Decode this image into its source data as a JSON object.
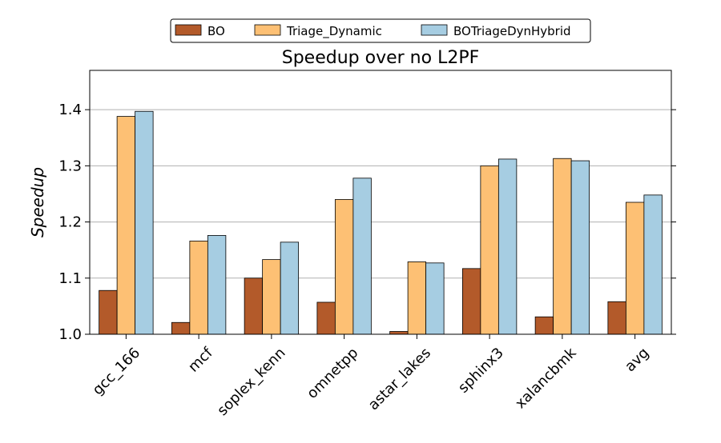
{
  "chart_data": {
    "type": "bar",
    "title": "Speedup over no L2PF",
    "xlabel": "",
    "ylabel": "Speedup",
    "ylim": [
      1.0,
      1.47
    ],
    "yticks": [
      "1.0",
      "1.1",
      "1.2",
      "1.3",
      "1.4"
    ],
    "grid": "horizontal",
    "legend_position": "top-center",
    "categories": [
      "gcc_166",
      "mcf",
      "soplex_kenn",
      "omnetpp",
      "astar_lakes",
      "sphinx3",
      "xalancbmk",
      "avg"
    ],
    "series": [
      {
        "name": "BO",
        "color": "#b35a2a",
        "values": [
          1.078,
          1.021,
          1.1,
          1.057,
          1.005,
          1.117,
          1.031,
          1.058
        ]
      },
      {
        "name": "Triage_Dynamic",
        "color": "#fdc074",
        "values": [
          1.388,
          1.166,
          1.133,
          1.24,
          1.129,
          1.3,
          1.313,
          1.235
        ]
      },
      {
        "name": "BOTriageDynHybrid",
        "color": "#a6cde2",
        "values": [
          1.397,
          1.176,
          1.164,
          1.278,
          1.127,
          1.312,
          1.309,
          1.248
        ]
      }
    ]
  }
}
